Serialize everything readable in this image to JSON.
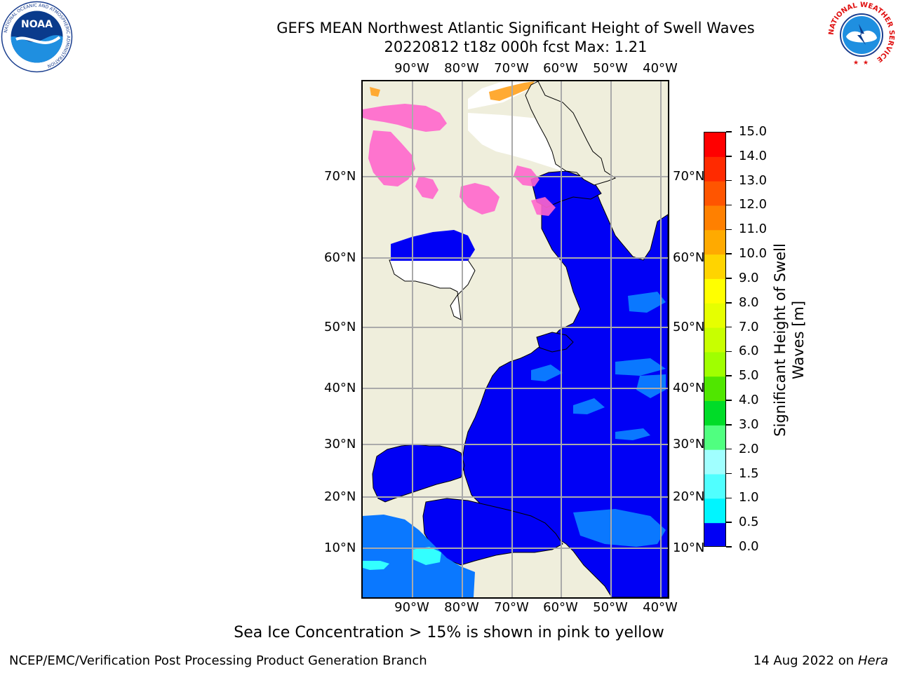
{
  "title": {
    "line1": "GEFS MEAN Northwest Atlantic Significant Height of Swell Waves",
    "line2": "20220812 t18z 000h fcst   Max: 1.21"
  },
  "map": {
    "lon_labels": [
      "90°W",
      "80°W",
      "70°W",
      "60°W",
      "50°W",
      "40°W"
    ],
    "lat_labels": [
      "70°N",
      "60°N",
      "50°N",
      "40°N",
      "30°N",
      "20°N",
      "10°N"
    ],
    "colors": {
      "land": "#efeedc",
      "ocean_low": "#0000f5",
      "ocean_mid": "#0a78ff",
      "ocean_cyan": "#33ffff",
      "ice": "#ff66cc",
      "ice_orange": "#ffaa33",
      "no_data": "#ffffff",
      "grid": "#aaaaaa"
    }
  },
  "colorbar": {
    "label": "Significant Height of Swell Waves [m]",
    "ticks": [
      "15.0",
      "14.0",
      "13.0",
      "12.0",
      "11.0",
      "10.0",
      "9.0",
      "8.0",
      "7.0",
      "6.0",
      "5.0",
      "4.0",
      "3.0",
      "2.0",
      "1.5",
      "1.0",
      "0.5",
      "0.0"
    ],
    "colors": [
      "#ff0000",
      "#ff2a00",
      "#ff5500",
      "#ff8000",
      "#ffaa00",
      "#ffd400",
      "#ffff00",
      "#e6ff00",
      "#c8ff00",
      "#a0ff00",
      "#50e600",
      "#00dc28",
      "#50ff80",
      "#a0ffff",
      "#50ffff",
      "#00f5ff",
      "#0a78ff",
      "#0000f5"
    ]
  },
  "note": "Sea Ice Concentration > 15% is shown in pink to yellow",
  "footer": {
    "left": "NCEP/EMC/Verification Post Processing Product Generation Branch",
    "right_date": "14 Aug 2022 on",
    "right_host": "Hera"
  },
  "logos": {
    "noaa_text": "NOAA",
    "noaa_ring": "NATIONAL OCEANIC AND ATMOSPHERIC ADMINISTRATION",
    "nws_ring": "NATIONAL WEATHER SERVICE"
  }
}
